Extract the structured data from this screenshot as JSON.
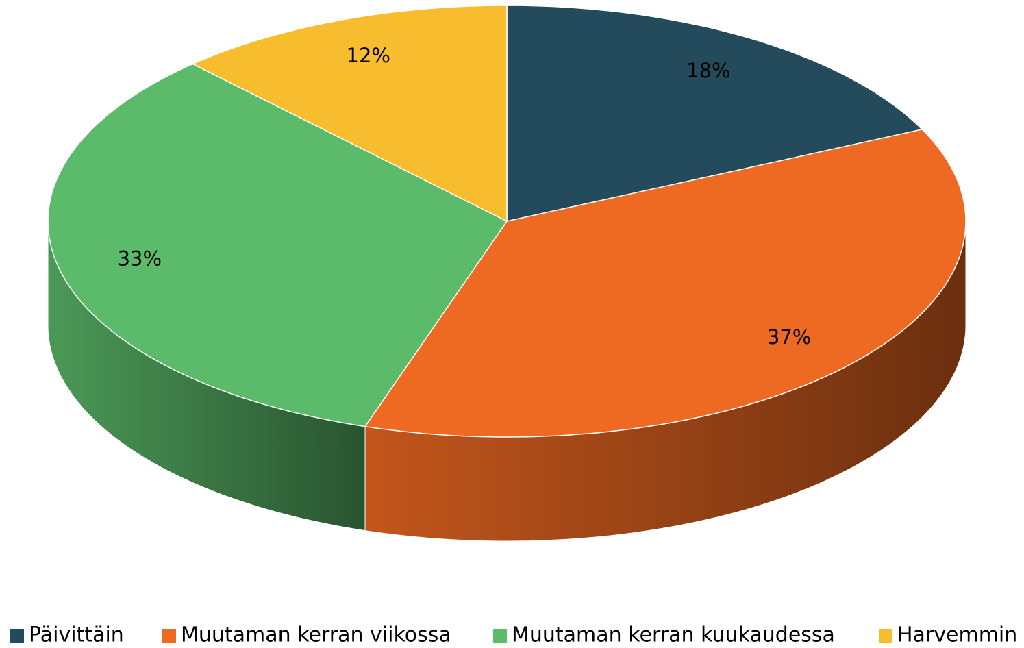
{
  "chart_data": {
    "type": "pie",
    "categories": [
      "Päivittäin",
      "Muutaman kerran viikossa",
      "Muutaman kerran kuukaudessa",
      "Harvemmin"
    ],
    "values": [
      18,
      37,
      33,
      12
    ],
    "value_labels": [
      "18%",
      "37%",
      "33%",
      "12%"
    ],
    "colors": [
      "#234b5c",
      "#ee6922",
      "#5cbb6a",
      "#f8bd2e"
    ],
    "legend": "bottom"
  }
}
